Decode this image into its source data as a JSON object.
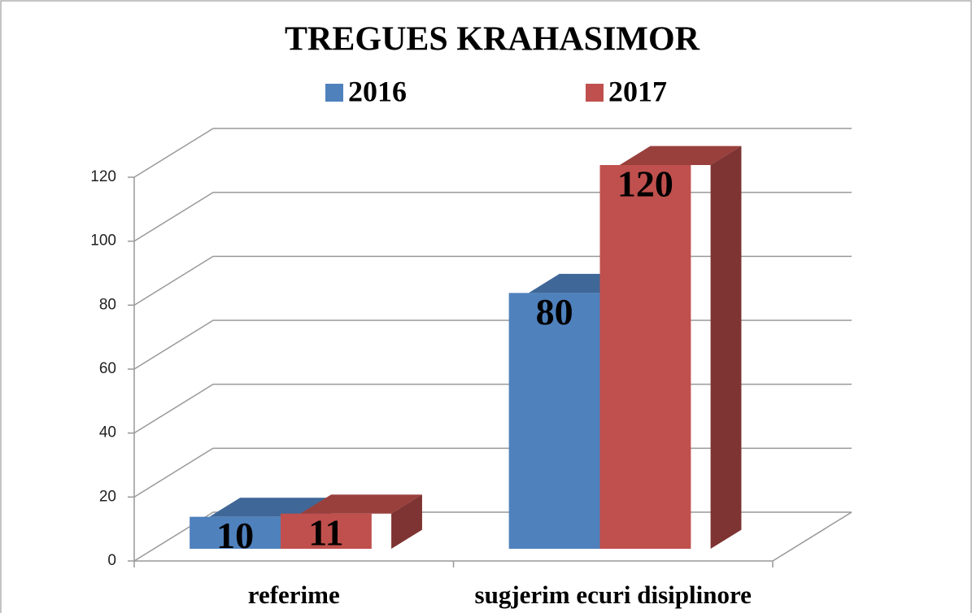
{
  "chart_data": {
    "type": "bar3d",
    "title": "TREGUES KRAHASIMOR",
    "categories": [
      "referime",
      "sugjerim ecuri disiplinore"
    ],
    "series": [
      {
        "name": "2016",
        "color": "#4f81bd",
        "values": [
          10,
          80
        ]
      },
      {
        "name": "2017",
        "color": "#c0504d",
        "values": [
          11,
          120
        ]
      }
    ],
    "ylim": [
      0,
      120
    ],
    "yticks": [
      0,
      20,
      40,
      60,
      80,
      100,
      120
    ],
    "grid": true,
    "legend": "top"
  }
}
